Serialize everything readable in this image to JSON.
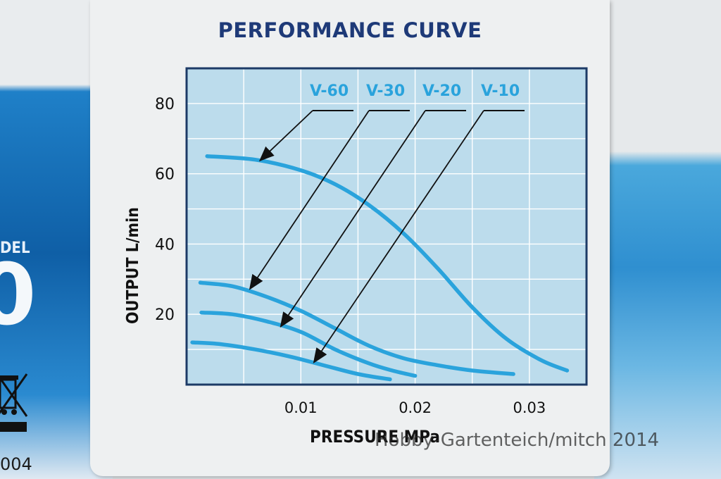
{
  "background": {
    "model_fragment": "DEL",
    "big_glyph": "0",
    "code_fragment": "004",
    "recycle_icon": "crossed-out-bin-icon"
  },
  "watermark": "Hobby-Gartenteich/mitch 2014",
  "colors": {
    "title": "#1e3a78",
    "curve": "#2aa3dc",
    "plot_bg": "#bcdcec",
    "grid": "#ffffff",
    "frame": "#1c3a66"
  },
  "chart_data": {
    "type": "line",
    "title": "PERFORMANCE CURVE",
    "xlabel": "PRESSURE MPa",
    "ylabel": "OUTPUT L/min",
    "xlim": [
      0,
      0.035
    ],
    "ylim": [
      0,
      90
    ],
    "x_ticks": [
      "0.01",
      "0.02",
      "0.03"
    ],
    "y_ticks": [
      "20",
      "40",
      "60",
      "80"
    ],
    "grid": true,
    "legend": "top, arrow-labelled",
    "series": [
      {
        "name": "V-60",
        "x": [
          0.0018,
          0.006,
          0.01,
          0.013,
          0.016,
          0.019,
          0.022,
          0.025,
          0.028,
          0.031,
          0.0333
        ],
        "y": [
          65,
          64,
          61,
          57,
          51,
          43,
          33,
          22,
          13,
          7,
          4
        ]
      },
      {
        "name": "V-30",
        "x": [
          0.0012,
          0.004,
          0.007,
          0.01,
          0.013,
          0.016,
          0.019,
          0.022,
          0.025,
          0.0286
        ],
        "y": [
          29,
          28,
          25,
          21,
          16,
          11,
          7.5,
          5.5,
          4,
          3
        ]
      },
      {
        "name": "V-20",
        "x": [
          0.0013,
          0.004,
          0.007,
          0.01,
          0.013,
          0.016,
          0.018,
          0.02
        ],
        "y": [
          20.5,
          20,
          18,
          15,
          10,
          6,
          4,
          2.5
        ]
      },
      {
        "name": "V-10",
        "x": [
          0.0005,
          0.003,
          0.006,
          0.009,
          0.012,
          0.015,
          0.0178
        ],
        "y": [
          12,
          11.5,
          10,
          8,
          5.5,
          3,
          1.5
        ]
      }
    ]
  }
}
